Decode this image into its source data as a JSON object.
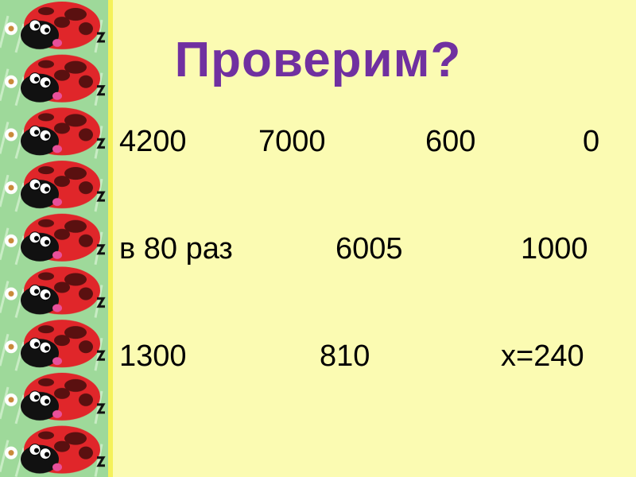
{
  "slide": {
    "title": "Проверим?",
    "title_color": "#7030a0",
    "decoration": "ladybug-border",
    "rows": [
      [
        "4200",
        "7000",
        "600",
        "0"
      ],
      [
        "в 80 раз",
        "6005",
        "1000"
      ],
      [
        "1300",
        "810",
        "х=240"
      ]
    ]
  }
}
